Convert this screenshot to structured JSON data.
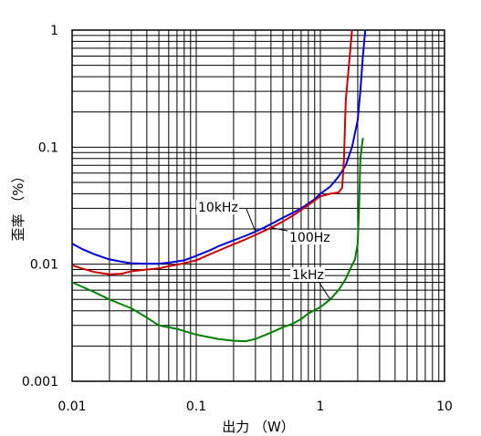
{
  "chart_data": {
    "type": "line",
    "x_scale": "log",
    "y_scale": "log",
    "xlim": [
      0.01,
      10
    ],
    "ylim": [
      0.001,
      1
    ],
    "xlabel": "出力 （W）",
    "ylabel": "歪率 （%）",
    "grid": true,
    "x_ticks": [
      "0.01",
      "0.1",
      "1",
      "10"
    ],
    "y_ticks": [
      "0.001",
      "0.01",
      "0.1",
      "1"
    ],
    "colors": {
      "10kHz": "#0000dd",
      "100Hz": "#cc0000",
      "1kHz": "#008000"
    },
    "series": [
      {
        "name": "10kHz",
        "points": [
          [
            0.01,
            0.015
          ],
          [
            0.012,
            0.0135
          ],
          [
            0.015,
            0.0122
          ],
          [
            0.02,
            0.011
          ],
          [
            0.025,
            0.0105
          ],
          [
            0.03,
            0.0102
          ],
          [
            0.04,
            0.0101
          ],
          [
            0.05,
            0.0101
          ],
          [
            0.06,
            0.0103
          ],
          [
            0.08,
            0.0108
          ],
          [
            0.1,
            0.0118
          ],
          [
            0.13,
            0.0132
          ],
          [
            0.15,
            0.0142
          ],
          [
            0.2,
            0.016
          ],
          [
            0.25,
            0.0175
          ],
          [
            0.3,
            0.019
          ],
          [
            0.35,
            0.0205
          ],
          [
            0.4,
            0.022
          ],
          [
            0.5,
            0.025
          ],
          [
            0.6,
            0.0275
          ],
          [
            0.7,
            0.03
          ],
          [
            0.8,
            0.033
          ],
          [
            0.9,
            0.036
          ],
          [
            1.0,
            0.04
          ],
          [
            1.2,
            0.046
          ],
          [
            1.4,
            0.056
          ],
          [
            1.6,
            0.07
          ],
          [
            1.8,
            0.1
          ],
          [
            2.0,
            0.17
          ],
          [
            2.1,
            0.3
          ],
          [
            2.2,
            0.6
          ],
          [
            2.3,
            1.0
          ]
        ]
      },
      {
        "name": "100Hz",
        "points": [
          [
            0.01,
            0.0098
          ],
          [
            0.012,
            0.0092
          ],
          [
            0.015,
            0.0086
          ],
          [
            0.02,
            0.0082
          ],
          [
            0.025,
            0.0083
          ],
          [
            0.03,
            0.0087
          ],
          [
            0.04,
            0.009
          ],
          [
            0.05,
            0.0092
          ],
          [
            0.06,
            0.0096
          ],
          [
            0.08,
            0.0102
          ],
          [
            0.1,
            0.0108
          ],
          [
            0.13,
            0.0122
          ],
          [
            0.15,
            0.013
          ],
          [
            0.2,
            0.0148
          ],
          [
            0.25,
            0.0163
          ],
          [
            0.3,
            0.0178
          ],
          [
            0.4,
            0.0205
          ],
          [
            0.5,
            0.0232
          ],
          [
            0.6,
            0.026
          ],
          [
            0.7,
            0.029
          ],
          [
            0.8,
            0.032
          ],
          [
            0.9,
            0.035
          ],
          [
            1.0,
            0.038
          ],
          [
            1.2,
            0.04
          ],
          [
            1.4,
            0.041
          ],
          [
            1.5,
            0.045
          ],
          [
            1.55,
            0.08
          ],
          [
            1.6,
            0.25
          ],
          [
            1.7,
            0.5
          ],
          [
            1.8,
            1.0
          ]
        ]
      },
      {
        "name": "1kHz",
        "points": [
          [
            0.01,
            0.007
          ],
          [
            0.015,
            0.0058
          ],
          [
            0.02,
            0.005
          ],
          [
            0.03,
            0.0042
          ],
          [
            0.04,
            0.0035
          ],
          [
            0.05,
            0.003
          ],
          [
            0.07,
            0.0028
          ],
          [
            0.1,
            0.0025
          ],
          [
            0.15,
            0.0023
          ],
          [
            0.2,
            0.00222
          ],
          [
            0.25,
            0.0022
          ],
          [
            0.3,
            0.0023
          ],
          [
            0.4,
            0.0026
          ],
          [
            0.5,
            0.0029
          ],
          [
            0.6,
            0.0031
          ],
          [
            0.7,
            0.0034
          ],
          [
            0.8,
            0.0038
          ],
          [
            1.0,
            0.0043
          ],
          [
            1.2,
            0.005
          ],
          [
            1.4,
            0.006
          ],
          [
            1.6,
            0.0075
          ],
          [
            1.8,
            0.0098
          ],
          [
            1.9,
            0.011
          ],
          [
            2.0,
            0.015
          ],
          [
            2.05,
            0.03
          ],
          [
            2.1,
            0.08
          ],
          [
            2.2,
            0.12
          ]
        ]
      }
    ],
    "annotations": [
      {
        "text": "10kHz",
        "series": "10kHz",
        "at": [
          0.3,
          0.019
        ]
      },
      {
        "text": "100Hz",
        "series": "100Hz",
        "at": [
          0.4,
          0.0205
        ]
      },
      {
        "text": "1kHz",
        "series": "1kHz",
        "at": [
          1.2,
          0.005
        ]
      }
    ]
  }
}
